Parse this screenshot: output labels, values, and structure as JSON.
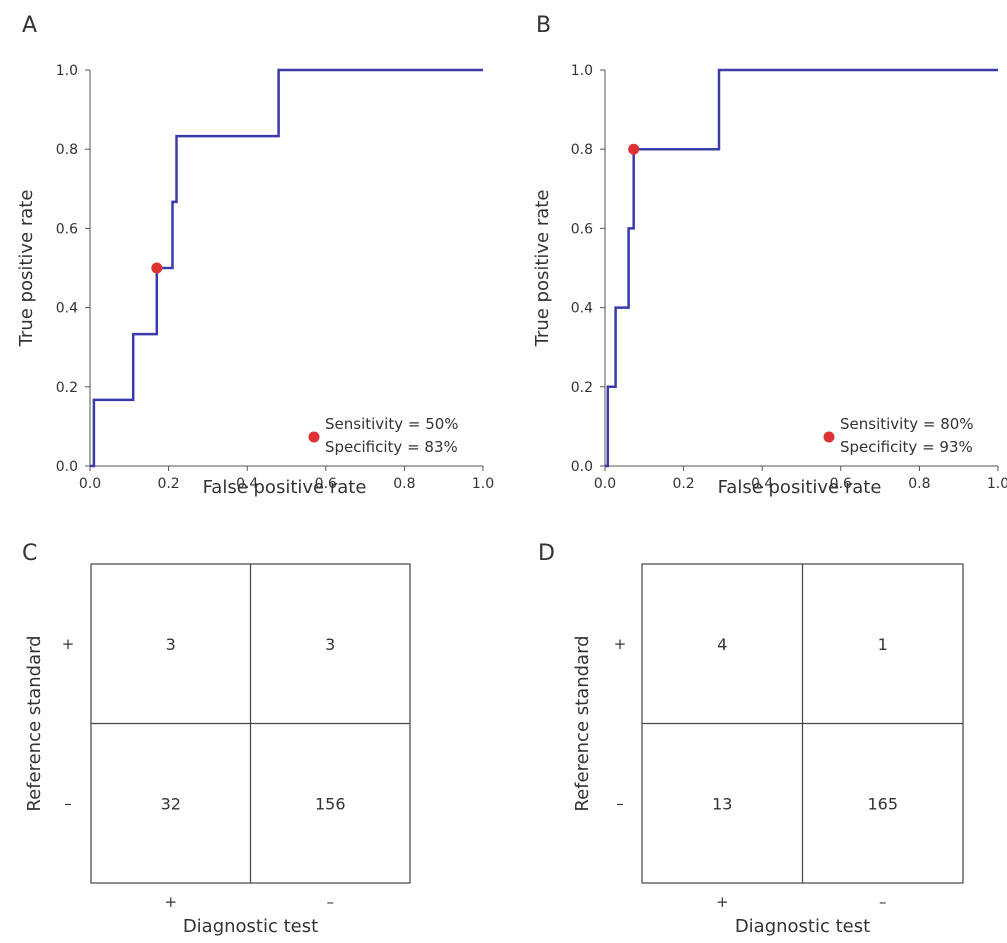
{
  "chart_data": [
    {
      "panel_label": "A",
      "type": "line",
      "xlabel": "False positive rate",
      "ylabel": "True positive rate",
      "xlim": [
        0,
        1
      ],
      "ylim": [
        0,
        1
      ],
      "x_ticks": [
        "0.0",
        "0.2",
        "0.4",
        "0.6",
        "0.8",
        "1.0"
      ],
      "y_ticks": [
        "0.0",
        "0.2",
        "0.4",
        "0.6",
        "0.8",
        "1.0"
      ],
      "line_color": "#3a3aaa",
      "series": [
        {
          "x": [
            0,
            0.01,
            0.01,
            0.11,
            0.11,
            0.17,
            0.17,
            0.21,
            0.21,
            0.22,
            0.22,
            0.48,
            0.48,
            1.0
          ],
          "y": [
            0,
            0,
            0.167,
            0.167,
            0.333,
            0.333,
            0.5,
            0.5,
            0.667,
            0.667,
            0.833,
            0.833,
            1.0,
            1.0
          ]
        }
      ],
      "point": {
        "x": 0.17,
        "y": 0.5,
        "color": "#dd3333"
      },
      "legend": {
        "lines": [
          "Sensitivity = 50%",
          "Specificity = 83%"
        ],
        "placement": "bottom-right"
      },
      "grid": false
    },
    {
      "panel_label": "B",
      "type": "line",
      "xlabel": "False positive rate",
      "ylabel": "True positive rate",
      "xlim": [
        0,
        1
      ],
      "ylim": [
        0,
        1
      ],
      "x_ticks": [
        "0.0",
        "0.2",
        "0.4",
        "0.6",
        "0.8",
        "1.0"
      ],
      "y_ticks": [
        "0.0",
        "0.2",
        "0.4",
        "0.6",
        "0.8",
        "1.0"
      ],
      "line_color": "#3a3aaa",
      "series": [
        {
          "x": [
            0,
            0.007,
            0.007,
            0.027,
            0.027,
            0.06,
            0.06,
            0.073,
            0.073,
            0.29,
            0.29,
            1.0
          ],
          "y": [
            0,
            0,
            0.2,
            0.2,
            0.4,
            0.4,
            0.6,
            0.6,
            0.8,
            0.8,
            1.0,
            1.0
          ]
        }
      ],
      "point": {
        "x": 0.073,
        "y": 0.8,
        "color": "#dd3333"
      },
      "legend": {
        "lines": [
          "Sensitivity = 80%",
          "Specificity = 93%"
        ],
        "placement": "bottom-right"
      },
      "grid": false
    },
    {
      "panel_label": "C",
      "type": "table",
      "xlabel": "Diagnostic test",
      "ylabel": "Reference standard",
      "col_labels": [
        "+",
        "–"
      ],
      "row_labels": [
        "+",
        "–"
      ],
      "cells": [
        [
          "3",
          "3"
        ],
        [
          "32",
          "156"
        ]
      ]
    },
    {
      "panel_label": "D",
      "type": "table",
      "xlabel": "Diagnostic test",
      "ylabel": "Reference standard",
      "col_labels": [
        "+",
        "–"
      ],
      "row_labels": [
        "+",
        "–"
      ],
      "cells": [
        [
          "4",
          "1"
        ],
        [
          "13",
          "165"
        ]
      ]
    }
  ]
}
